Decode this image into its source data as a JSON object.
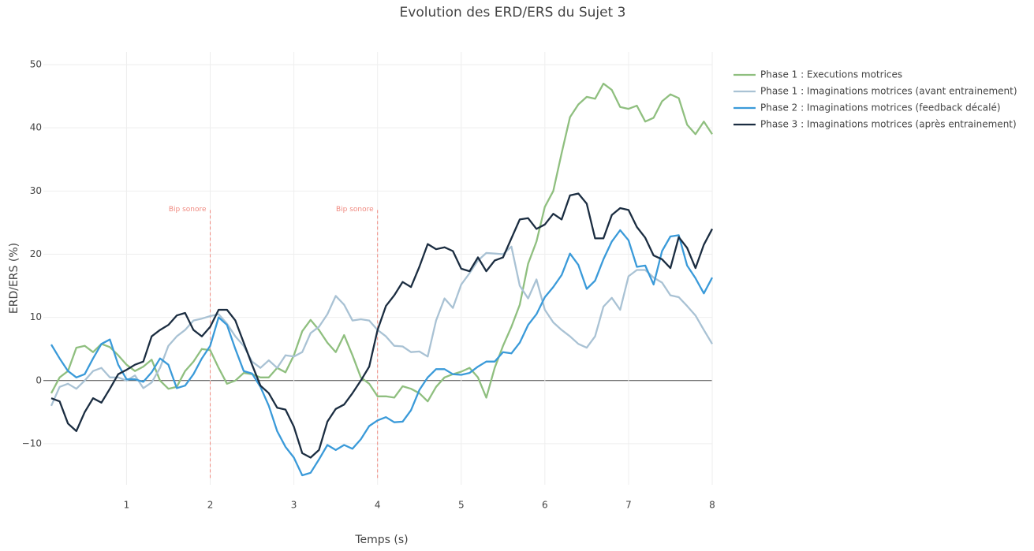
{
  "chart_data": {
    "type": "line",
    "title": "Evolution des ERD/ERS du Sujet 3",
    "x_label": "Temps (s)",
    "y_label": "ERD/ERS (%)",
    "x": [
      0.1,
      0.2,
      0.3,
      0.4,
      0.5,
      0.6,
      0.7,
      0.8,
      0.9,
      1.0,
      1.1,
      1.2,
      1.3,
      1.4,
      1.5,
      1.6,
      1.7,
      1.8,
      1.9,
      2.0,
      2.1,
      2.2,
      2.3,
      2.4,
      2.5,
      2.6,
      2.7,
      2.8,
      2.9,
      3.0,
      3.1,
      3.2,
      3.3,
      3.4,
      3.5,
      3.6,
      3.7,
      3.8,
      3.9,
      4.0,
      4.1,
      4.2,
      4.3,
      4.4,
      4.5,
      4.6,
      4.7,
      4.8,
      4.9,
      5.0,
      5.1,
      5.2,
      5.3,
      5.4,
      5.5,
      5.6,
      5.7,
      5.8,
      5.9,
      6.0,
      6.1,
      6.2,
      6.3,
      6.4,
      6.5,
      6.6,
      6.7,
      6.8,
      6.9,
      7.0,
      7.1,
      7.2,
      7.3,
      7.4,
      7.5,
      7.6,
      7.7,
      7.8,
      7.9,
      8.0
    ],
    "series": [
      {
        "name": "Phase 1 : Executions motrices",
        "color": "#8fbf7f",
        "values": [
          -2,
          0.5,
          1.5,
          5.2,
          5.5,
          4.5,
          5.8,
          5.3,
          4,
          2.5,
          1.5,
          2.2,
          3.3,
          0,
          -1.3,
          -1,
          1.5,
          3,
          5,
          4.8,
          2,
          -0.5,
          0,
          1.2,
          1,
          0.5,
          0.5,
          2,
          1.3,
          4,
          7.8,
          9.6,
          8,
          6,
          4.5,
          7.2,
          4,
          0.5,
          -0.5,
          -2.5,
          -2.5,
          -2.7,
          -0.9,
          -1.3,
          -2,
          -3.3,
          -1,
          0.5,
          1,
          1.4,
          2,
          0.5,
          -2.7,
          2,
          5.5,
          8.5,
          12,
          18.5,
          22,
          27.5,
          30,
          36,
          41.7,
          43.7,
          44.9,
          44.6,
          47,
          46,
          43.3,
          43,
          43.5,
          41,
          41.6,
          44.2,
          45.3,
          44.7,
          40.5,
          39,
          41,
          39
        ]
      },
      {
        "name": "Phase 1 : Imaginations motrices (avant entrainement)",
        "color": "#a9c2d4",
        "values": [
          -4,
          -1,
          -0.5,
          -1.3,
          0,
          1.5,
          2,
          0.5,
          0.5,
          0,
          0.8,
          -1.2,
          -0.3,
          2,
          5.5,
          7,
          8,
          9.5,
          9.8,
          10.2,
          10.5,
          9,
          7,
          5.5,
          3,
          2,
          3.2,
          2,
          4,
          3.8,
          4.5,
          7.5,
          8.5,
          10.5,
          13.4,
          12,
          9.5,
          9.7,
          9.5,
          8,
          7,
          5.5,
          5.4,
          4.5,
          4.6,
          3.8,
          9.5,
          13,
          11.5,
          15.2,
          17,
          19,
          20.2,
          20.1,
          20,
          21.2,
          15,
          13,
          16,
          11.2,
          9.2,
          8,
          7,
          5.8,
          5.2,
          7,
          11.7,
          13.1,
          11.2,
          16.5,
          17.5,
          17.5,
          16.3,
          15.5,
          13.5,
          13.2,
          11.8,
          10.3,
          8,
          5.8
        ]
      },
      {
        "name": "Phase 2 : Imaginations motrices (feedback décalé)",
        "color": "#3a9ad9",
        "values": [
          5.7,
          3.5,
          1.5,
          0.5,
          1,
          3.5,
          5.8,
          6.5,
          2.5,
          0.2,
          0.2,
          -0.2,
          1.3,
          3.5,
          2.5,
          -1.2,
          -0.8,
          1,
          3.5,
          5.5,
          10,
          8.8,
          5,
          1.5,
          1.1,
          -1,
          -4,
          -8,
          -10.5,
          -12.2,
          -15,
          -14.6,
          -12.5,
          -10.2,
          -11,
          -10.2,
          -10.8,
          -9.3,
          -7.2,
          -6.3,
          -5.8,
          -6.6,
          -6.5,
          -4.7,
          -1.5,
          0.5,
          1.8,
          1.8,
          1,
          0.9,
          1.2,
          2.2,
          3,
          3,
          4.5,
          4.3,
          6,
          8.8,
          10.5,
          13.2,
          14.8,
          16.7,
          20.1,
          18.3,
          14.5,
          15.8,
          19.2,
          22,
          23.8,
          22.2,
          18,
          18.2,
          15.2,
          20.5,
          22.8,
          23,
          18.2,
          16.2,
          13.8,
          16.3
        ]
      },
      {
        "name": "Phase 3 : Imaginations motrices (après entrainement)",
        "color": "#1b2d41",
        "values": [
          -2.8,
          -3.3,
          -6.8,
          -8,
          -5,
          -2.8,
          -3.5,
          -1.3,
          1,
          1.7,
          2.5,
          3,
          7,
          8,
          8.8,
          10.3,
          10.7,
          8,
          7,
          8.5,
          11.2,
          11.2,
          9.5,
          6,
          2.5,
          -0.8,
          -2,
          -4.3,
          -4.6,
          -7.3,
          -11.5,
          -12.2,
          -11,
          -6.5,
          -4.5,
          -3.8,
          -2,
          0,
          2.2,
          8,
          11.8,
          13.5,
          15.6,
          14.8,
          18,
          21.6,
          20.8,
          21.1,
          20.5,
          17.7,
          17.3,
          19.5,
          17.3,
          19,
          19.5,
          22.5,
          25.5,
          25.7,
          24,
          24.7,
          26.4,
          25.5,
          29.3,
          29.6,
          28,
          22.5,
          22.5,
          26.2,
          27.3,
          27,
          24.3,
          22.6,
          19.8,
          19.2,
          17.8,
          22.7,
          21,
          17.8,
          21.5,
          24
        ]
      }
    ],
    "annotations": [
      {
        "x": 2,
        "y": 27,
        "text": "Bip sonore",
        "color": "#f08a80"
      },
      {
        "x": 4,
        "y": 27,
        "text": "Bip sonore",
        "color": "#f08a80"
      }
    ],
    "xlim": [
      0.1,
      8
    ],
    "ylim": [
      -16.5,
      52
    ],
    "xticks": [
      1,
      2,
      3,
      4,
      5,
      6,
      7,
      8
    ],
    "yticks": [
      {
        "value": -10,
        "label": "−10"
      },
      0,
      10,
      20,
      30,
      40,
      50
    ],
    "grid": true,
    "legend": "top-right"
  }
}
